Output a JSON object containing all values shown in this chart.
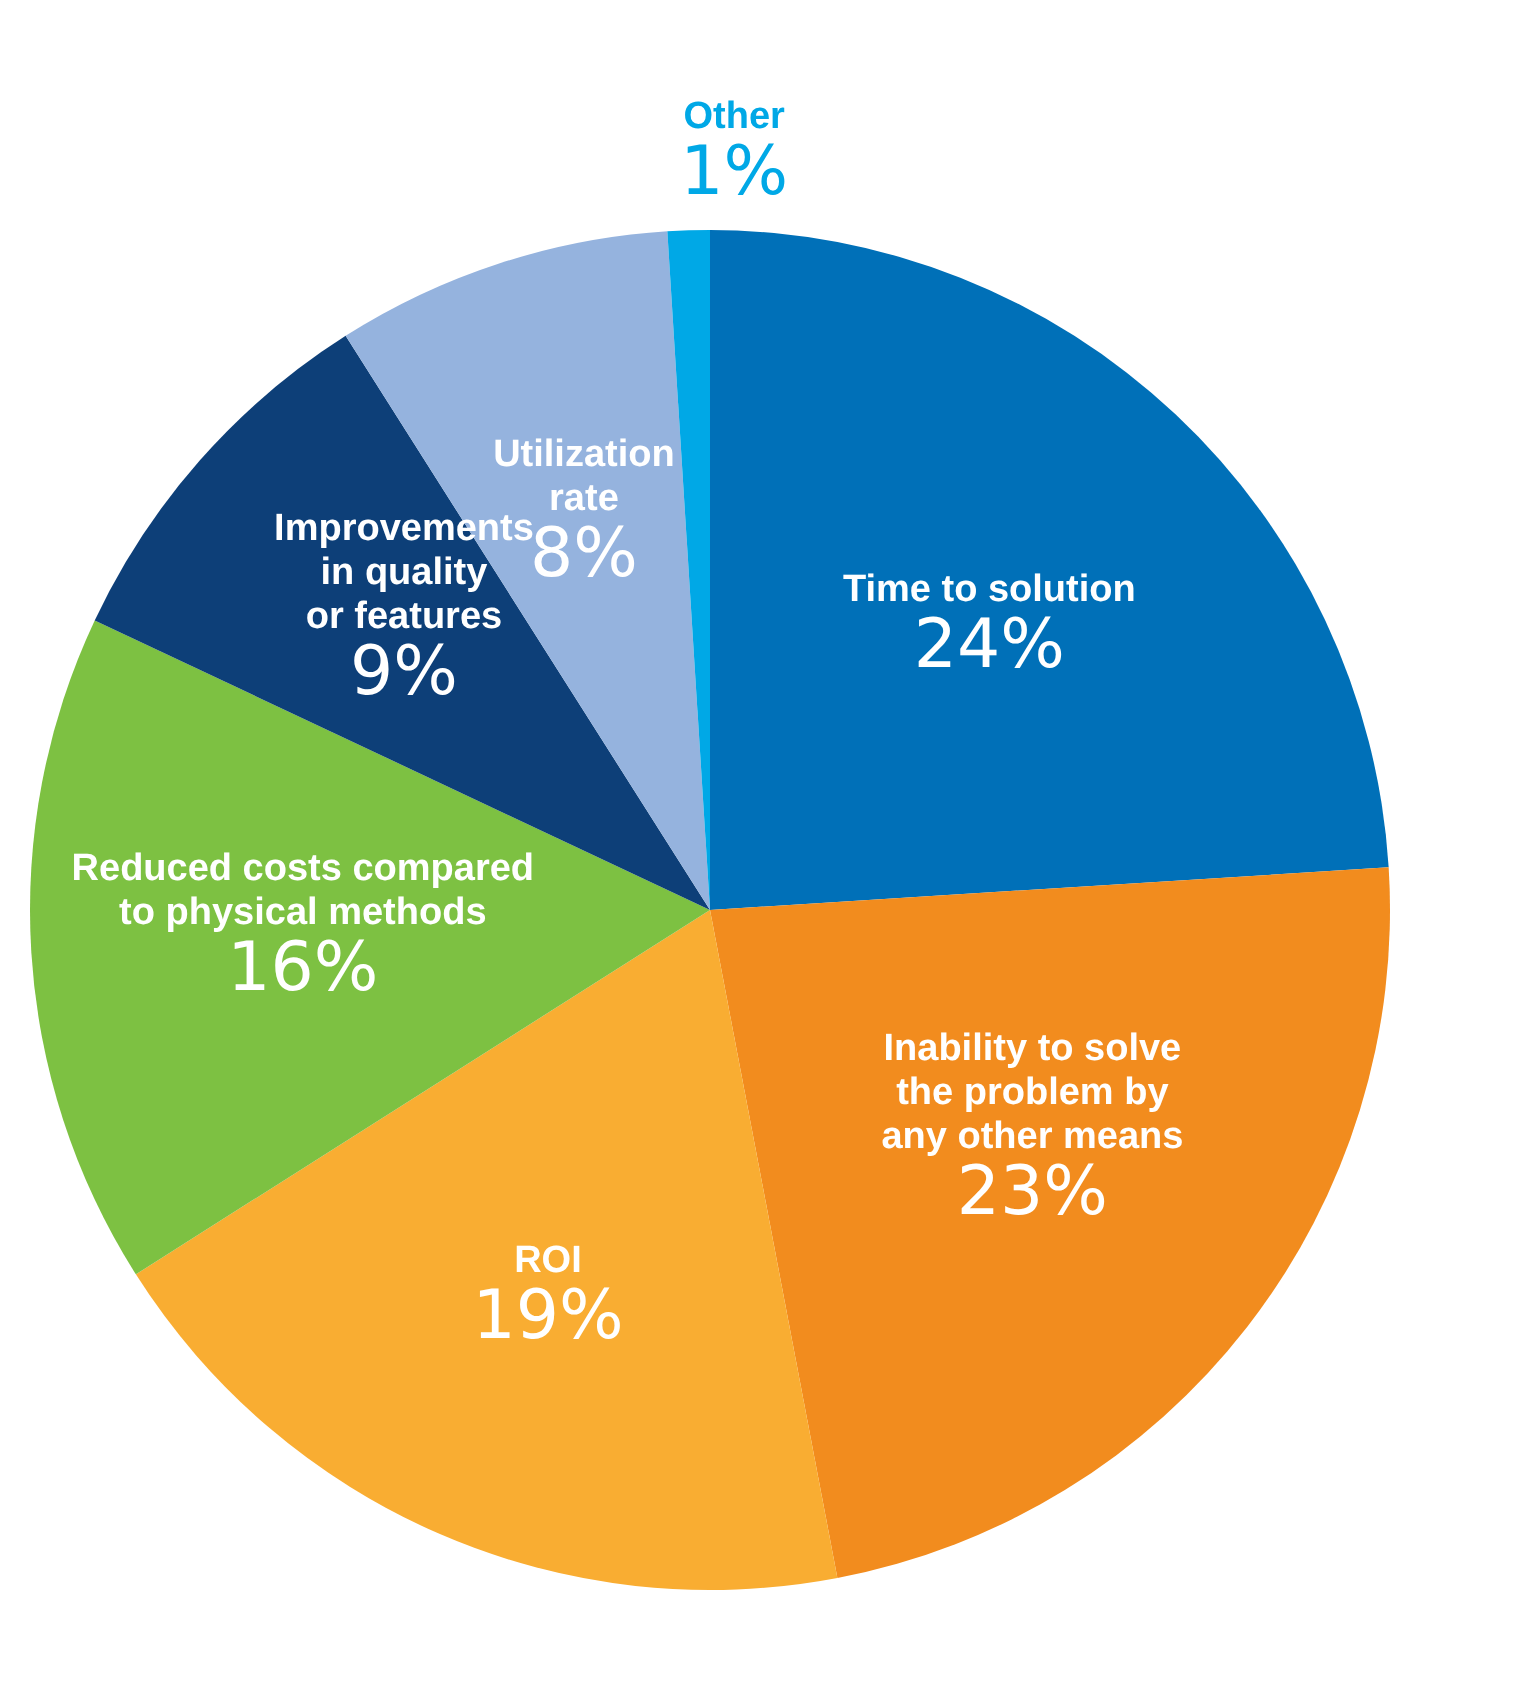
{
  "chart_data": {
    "type": "pie",
    "categories": [
      "Time to solution",
      "Inability to solve\nthe problem by\nany other means",
      "ROI",
      "Reduced costs compared\nto physical methods",
      "Improvements\nin quality\nor features",
      "Utilization\nrate",
      "Other"
    ],
    "values": [
      24,
      23,
      19,
      16,
      9,
      8,
      1
    ],
    "value_labels": [
      "24%",
      "23%",
      "19%",
      "16%",
      "9%",
      "8%",
      "1%"
    ],
    "colors": [
      "#0070b8",
      "#f28c1e",
      "#f9ad32",
      "#7dc142",
      "#0d3f78",
      "#95b3de",
      "#00a8e6"
    ],
    "legend": false
  }
}
